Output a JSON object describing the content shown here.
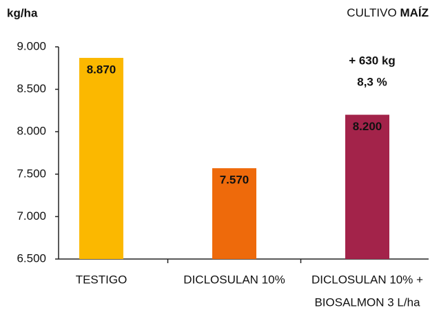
{
  "chart_data": {
    "type": "bar",
    "title": [
      "CULTIVO",
      "MAÍZ"
    ],
    "y_label": "kg/ha",
    "categories": [
      [
        "TESTIGO"
      ],
      [
        "DICLOSULAN 10%"
      ],
      [
        "DICLOSULAN 10% +",
        "BIOSALMON 3 L/ha"
      ]
    ],
    "values": [
      8870,
      7570,
      8200
    ],
    "value_labels": [
      "8.870",
      "7.570",
      "8.200"
    ],
    "colors": [
      "#fbb800",
      "#ee6a0b",
      "#a3234a"
    ],
    "value_label_colors": [
      "#222222",
      "#222222",
      "#ffffff"
    ],
    "ylim": [
      6500,
      9000
    ],
    "yticks": [
      {
        "value": 6500,
        "label": "6.500"
      },
      {
        "value": 7000,
        "label": "7.000"
      },
      {
        "value": 7500,
        "label": "7.500"
      },
      {
        "value": 8000,
        "label": "8.000"
      },
      {
        "value": 8500,
        "label": "8.500"
      },
      {
        "value": 9000,
        "label": "9.000"
      }
    ],
    "annotations": [
      {
        "text": "+ 630 kg",
        "color": "#a3234a"
      },
      {
        "text": "8,3 %",
        "color": "#a3234a"
      }
    ]
  }
}
